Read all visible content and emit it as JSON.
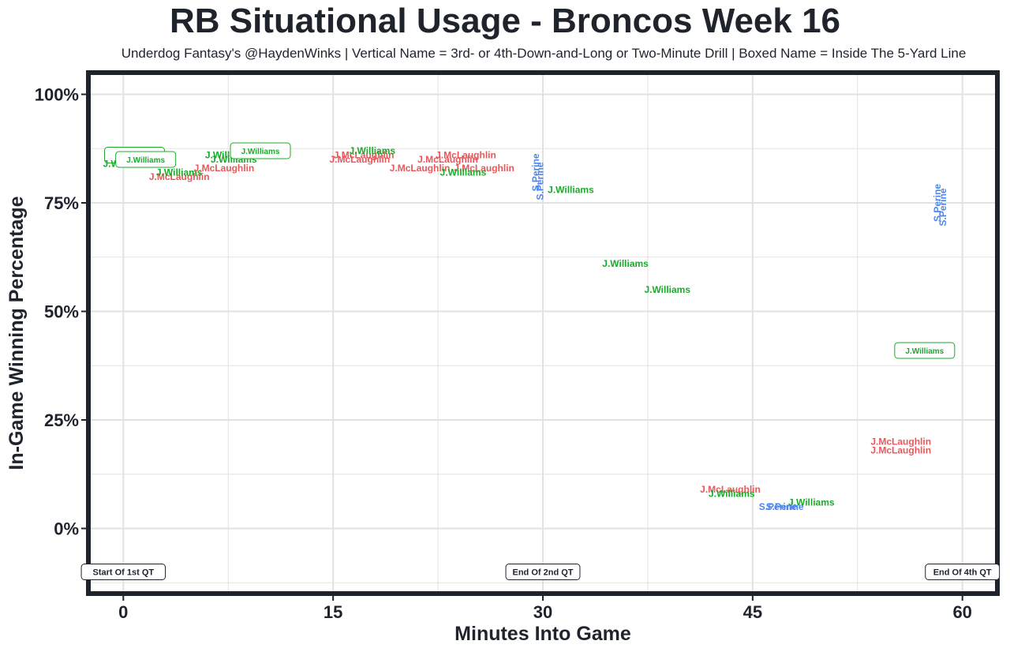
{
  "title": "RB Situational Usage - Broncos Week 16",
  "subtitle": "Underdog Fantasy's @HaydenWinks | Vertical Name = 3rd- or 4th-Down-and-Long or Two-Minute Drill | Boxed Name = Inside The 5-Yard Line",
  "colors": {
    "J.Williams": "#1aab2b",
    "J.McLaughlin": "#e8585a",
    "S.Perine": "#4f86ec",
    "frame": "#1f232b",
    "grid": "#e2e2e2"
  },
  "chart_data": {
    "type": "scatter",
    "xlabel": "Minutes Into Game",
    "ylabel": "In-Game Winning Percentage",
    "xlim": [
      -2.5,
      62.5
    ],
    "ylim": [
      -15,
      105
    ],
    "x_ticks": [
      0,
      15,
      30,
      45,
      60
    ],
    "x_tick_labels": [
      "0",
      "15",
      "30",
      "45",
      "60"
    ],
    "y_ticks": [
      0,
      25,
      50,
      75,
      100
    ],
    "y_tick_labels": [
      "0%",
      "25%",
      "50%",
      "75%",
      "100%"
    ],
    "grid": true,
    "annotations": [
      {
        "x": 0,
        "y": -10,
        "label": "Start Of 1st QT"
      },
      {
        "x": 30,
        "y": -10,
        "label": "End Of 2nd QT"
      },
      {
        "x": 60,
        "y": -10,
        "label": "End Of 4th QT"
      }
    ],
    "points": [
      {
        "x": 0.8,
        "y": 86,
        "player": "J.Williams",
        "style": "boxed"
      },
      {
        "x": 0.2,
        "y": 84,
        "player": "J.Williams",
        "style": "normal"
      },
      {
        "x": 1.6,
        "y": 85,
        "player": "J.Williams",
        "style": "boxed"
      },
      {
        "x": 4.0,
        "y": 81,
        "player": "J.McLaughlin",
        "style": "normal"
      },
      {
        "x": 4.0,
        "y": 82,
        "player": "J.Williams",
        "style": "normal"
      },
      {
        "x": 7.2,
        "y": 83,
        "player": "J.McLaughlin",
        "style": "normal"
      },
      {
        "x": 7.5,
        "y": 86,
        "player": "J.Williams",
        "style": "normal"
      },
      {
        "x": 7.9,
        "y": 85,
        "player": "J.Williams",
        "style": "normal"
      },
      {
        "x": 9.8,
        "y": 87,
        "player": "J.Williams",
        "style": "boxed"
      },
      {
        "x": 17.2,
        "y": 86,
        "player": "J.McLaughlin",
        "style": "normal"
      },
      {
        "x": 16.9,
        "y": 85,
        "player": "J.McLaughlin",
        "style": "normal"
      },
      {
        "x": 17.8,
        "y": 87,
        "player": "J.Williams",
        "style": "normal"
      },
      {
        "x": 24.5,
        "y": 86,
        "player": "J.McLaughlin",
        "style": "normal"
      },
      {
        "x": 23.2,
        "y": 85,
        "player": "J.McLaughlin",
        "style": "normal"
      },
      {
        "x": 21.2,
        "y": 83,
        "player": "J.McLaughlin",
        "style": "normal"
      },
      {
        "x": 25.8,
        "y": 83,
        "player": "J.McLaughlin",
        "style": "normal"
      },
      {
        "x": 24.3,
        "y": 82,
        "player": "J.Williams",
        "style": "normal"
      },
      {
        "x": 29.5,
        "y": 82,
        "player": "S.Perine",
        "style": "vertical"
      },
      {
        "x": 29.8,
        "y": 80,
        "player": "S.Perine",
        "style": "vertical"
      },
      {
        "x": 32.0,
        "y": 78,
        "player": "J.Williams",
        "style": "normal"
      },
      {
        "x": 58.2,
        "y": 75,
        "player": "S.Perine",
        "style": "vertical"
      },
      {
        "x": 58.6,
        "y": 74,
        "player": "S.Perine",
        "style": "vertical"
      },
      {
        "x": 35.9,
        "y": 61,
        "player": "J.Williams",
        "style": "normal"
      },
      {
        "x": 38.9,
        "y": 55,
        "player": "J.Williams",
        "style": "normal"
      },
      {
        "x": 57.3,
        "y": 41,
        "player": "J.Williams",
        "style": "boxed"
      },
      {
        "x": 55.6,
        "y": 20,
        "player": "J.McLaughlin",
        "style": "normal"
      },
      {
        "x": 55.6,
        "y": 18,
        "player": "J.McLaughlin",
        "style": "normal"
      },
      {
        "x": 43.4,
        "y": 9,
        "player": "J.McLaughlin",
        "style": "normal"
      },
      {
        "x": 43.5,
        "y": 8,
        "player": "J.Williams",
        "style": "normal"
      },
      {
        "x": 49.2,
        "y": 6,
        "player": "J.Williams",
        "style": "normal"
      },
      {
        "x": 46.8,
        "y": 5,
        "player": "S.Perine",
        "style": "normal"
      },
      {
        "x": 47.3,
        "y": 5,
        "player": "S.Perine",
        "style": "normal"
      }
    ]
  }
}
